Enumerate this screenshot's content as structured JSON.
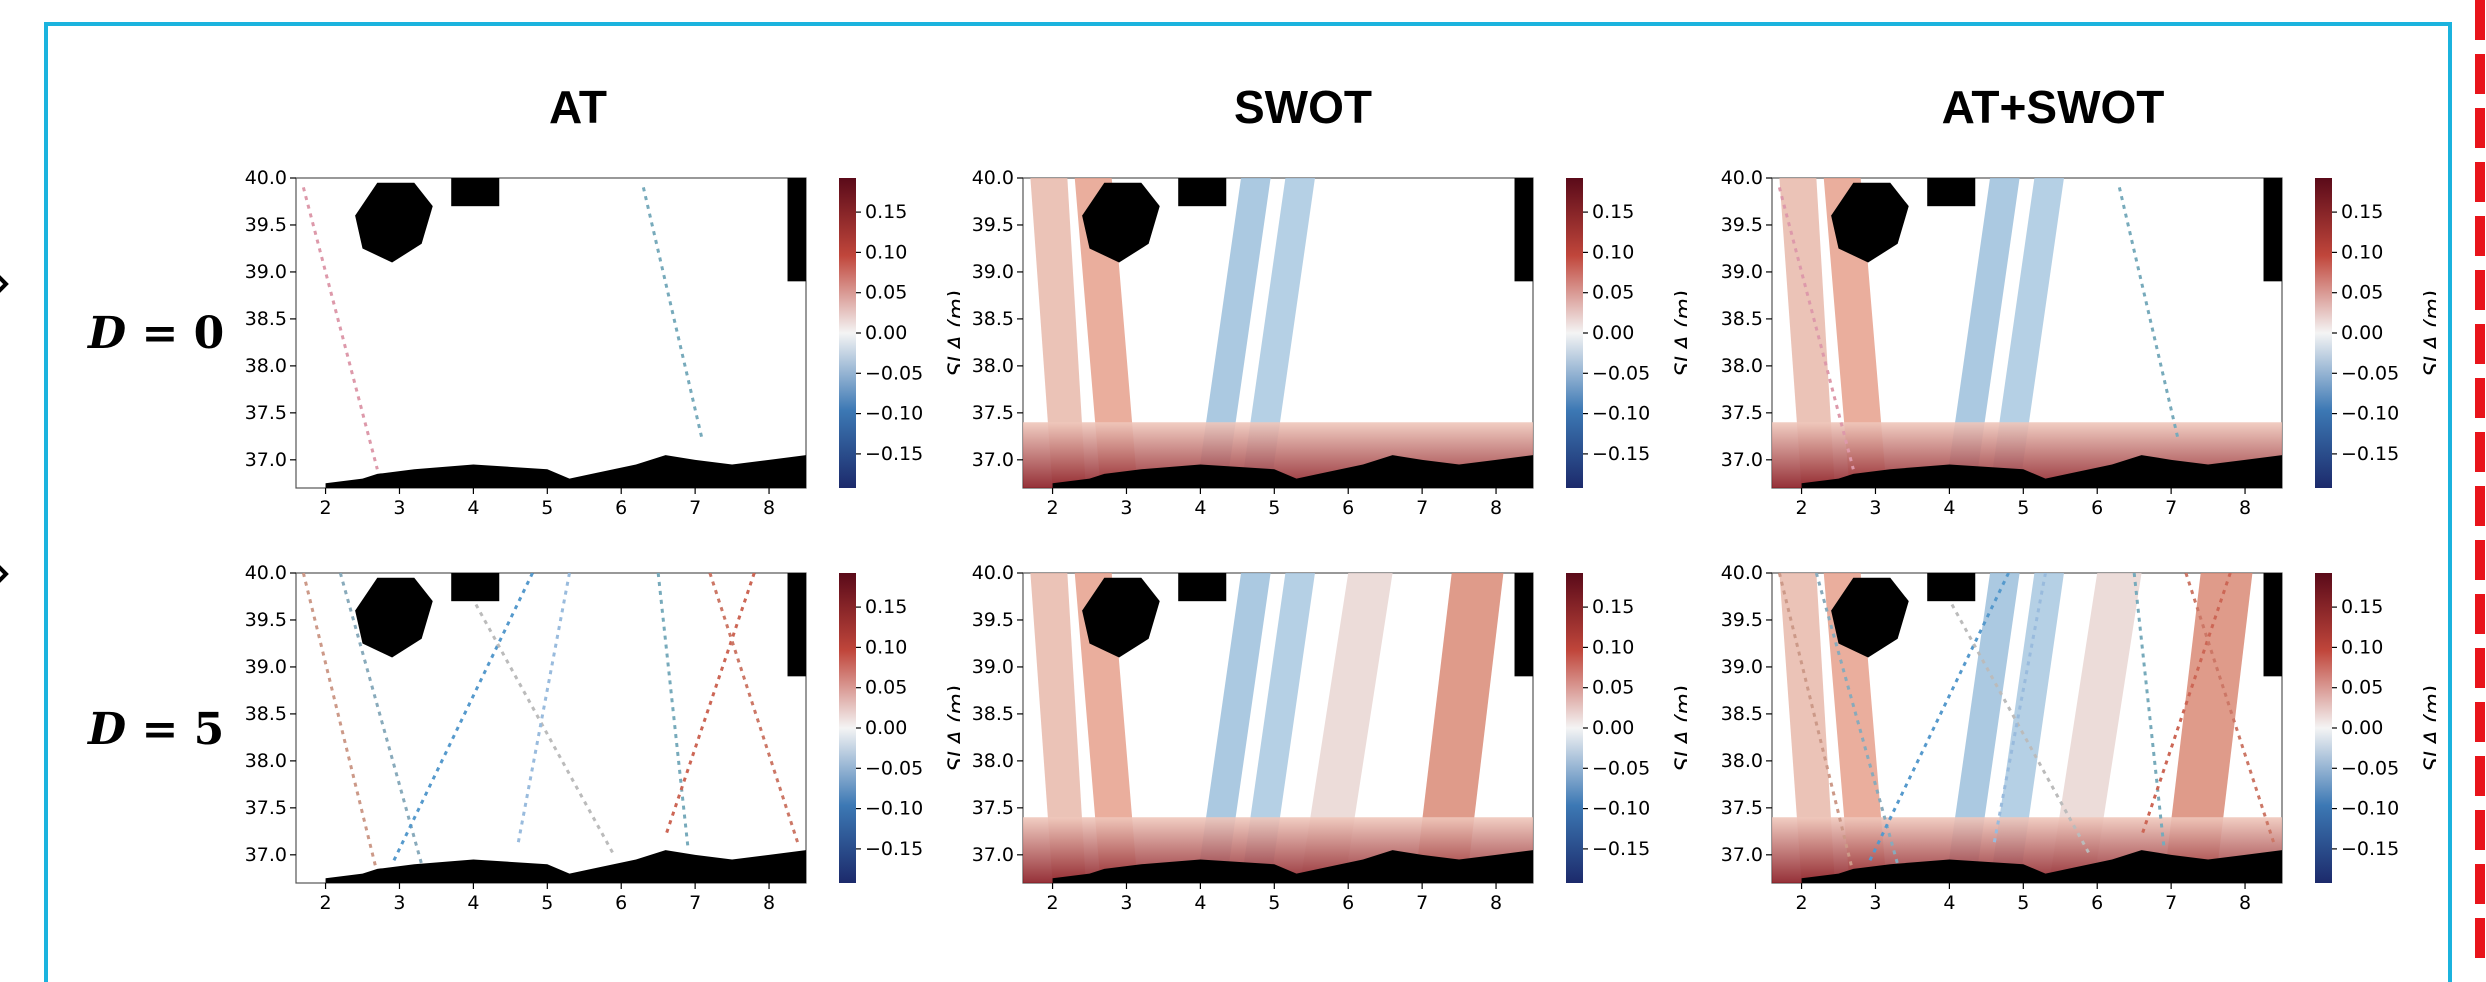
{
  "column_titles": [
    "AT",
    "SWOT",
    "AT+SWOT"
  ],
  "rows": [
    {
      "label_var": "D",
      "label_eq": "= 0"
    },
    {
      "label_var": "D",
      "label_eq": "= 5"
    }
  ],
  "colorbar": {
    "label": "SLA (m)",
    "ticks": [
      "0.15",
      "0.10",
      "0.05",
      "0.00",
      "−0.05",
      "−0.10",
      "−0.15"
    ],
    "colors": {
      "high": "#5a0a19",
      "mid": "#f4f4f4",
      "low": "#1c2a6b"
    }
  },
  "axes": {
    "x_ticks": [
      "2",
      "3",
      "4",
      "5",
      "6",
      "7",
      "8"
    ],
    "y_ticks": [
      "40.0",
      "39.5",
      "39.0",
      "38.5",
      "38.0",
      "37.5",
      "37.0"
    ]
  },
  "chart_data": [
    {
      "type": "heatmap",
      "title": "AT",
      "row": "D = 0",
      "xlim": [
        1.6,
        8.5
      ],
      "ylim": [
        36.7,
        40.0
      ],
      "colorbar_range": [
        -0.2,
        0.2
      ],
      "colorbar_label": "SLA (m)"
    },
    {
      "type": "heatmap",
      "title": "SWOT",
      "row": "D = 0",
      "xlim": [
        1.6,
        8.5
      ],
      "ylim": [
        36.7,
        40.0
      ],
      "colorbar_range": [
        -0.2,
        0.2
      ],
      "colorbar_label": "SLA (m)"
    },
    {
      "type": "heatmap",
      "title": "AT+SWOT",
      "row": "D = 0",
      "xlim": [
        1.6,
        8.5
      ],
      "ylim": [
        36.7,
        40.0
      ],
      "colorbar_range": [
        -0.2,
        0.2
      ],
      "colorbar_label": "SLA (m)"
    },
    {
      "type": "heatmap",
      "title": "AT",
      "row": "D = 5",
      "xlim": [
        1.6,
        8.5
      ],
      "ylim": [
        36.7,
        40.0
      ],
      "colorbar_range": [
        -0.2,
        0.2
      ],
      "colorbar_label": "SLA (m)"
    },
    {
      "type": "heatmap",
      "title": "SWOT",
      "row": "D = 5",
      "xlim": [
        1.6,
        8.5
      ],
      "ylim": [
        36.7,
        40.0
      ],
      "colorbar_range": [
        -0.2,
        0.2
      ],
      "colorbar_label": "SLA (m)"
    },
    {
      "type": "heatmap",
      "title": "AT+SWOT",
      "row": "D = 5",
      "xlim": [
        1.6,
        8.5
      ],
      "ylim": [
        36.7,
        40.0
      ],
      "colorbar_range": [
        -0.2,
        0.2
      ],
      "colorbar_label": "SLA (m)"
    }
  ]
}
